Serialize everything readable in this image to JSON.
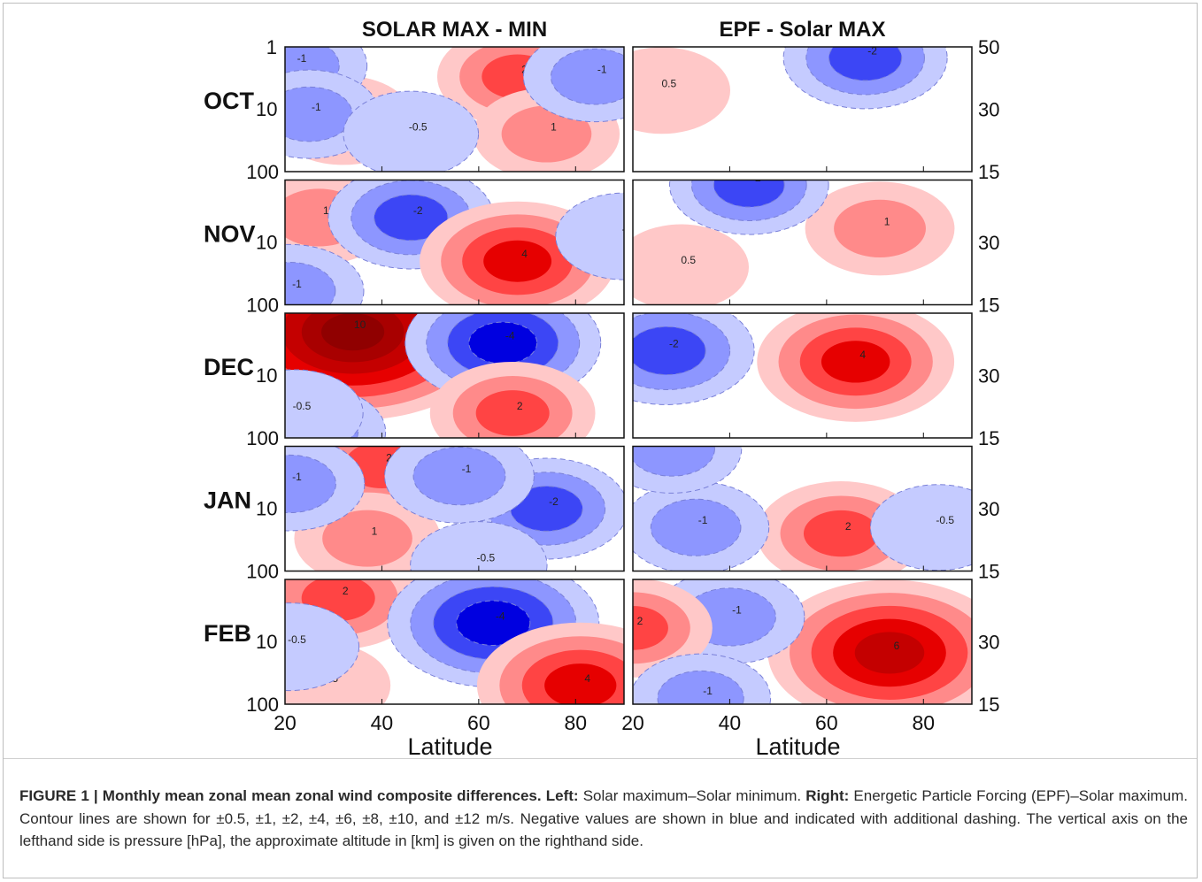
{
  "figure": {
    "panel_titles": [
      "SOLAR MAX - MIN",
      "EPF - Solar MAX"
    ],
    "months": [
      "OCT",
      "NOV",
      "DEC",
      "JAN",
      "FEB"
    ],
    "month_subscript": "10",
    "left_yticks": [
      "1",
      "100"
    ],
    "right_yticks": [
      "50",
      "30",
      "15"
    ],
    "xticks": [
      "20",
      "40",
      "60",
      "80"
    ],
    "xlabel": "Latitude",
    "colors": {
      "positive": "#e60000",
      "negative": "#0000e6"
    }
  },
  "caption": {
    "figure_label": "FIGURE 1 |",
    "title": "Monthly mean zonal mean zonal wind composite differences.",
    "left_label": "Left:",
    "left_text": "Solar maximum–Solar minimum.",
    "right_label": "Right:",
    "right_text": "Energetic Particle Forcing (EPF)–Solar maximum. Contour lines are shown for ±0.5, ±1, ±2, ±4, ±6, ±8, ±10, and ±12 m/s. Negative values are shown in blue and indicated with additional dashing. The vertical axis on the lefthand side is pressure [hPa], the approximate altitude in [km] is given on the righthand side."
  },
  "chart_data": [
    {
      "type": "heatmap",
      "title": "SOLAR MAX - MIN",
      "x_label": "Latitude",
      "x_range": [
        20,
        90
      ],
      "x_ticks": [
        20,
        40,
        60,
        80
      ],
      "y_label_left": "",
      "y_range": [
        100,
        1
      ],
      "y_scale": "log",
      "y_ticks_left": [
        1,
        10,
        100
      ],
      "contour_levels": [
        -12,
        -10,
        -8,
        -6,
        -4,
        -2,
        -1,
        -0.5,
        0.5,
        1,
        2,
        4,
        6,
        8,
        10,
        12
      ],
      "units": "m/s",
      "panels": [
        {
          "month": "OCT",
          "features": [
            {
              "lat": 68,
              "p": 3,
              "value": 2.3
            },
            {
              "lat": 74,
              "p": 25,
              "value": 1.4
            },
            {
              "lat": 32,
              "p": 15,
              "value": 1.1
            },
            {
              "lat": 22,
              "p": 2,
              "value": -1.3
            },
            {
              "lat": 25,
              "p": 12,
              "value": -1.0
            },
            {
              "lat": 46,
              "p": 25,
              "value": -0.7
            },
            {
              "lat": 84,
              "p": 3,
              "value": -1.2
            }
          ]
        },
        {
          "month": "NOV",
          "features": [
            {
              "lat": 22,
              "p": 2,
              "value": 3.0
            },
            {
              "lat": 27,
              "p": 4,
              "value": 1.6
            },
            {
              "lat": 46,
              "p": 4,
              "value": -2.6
            },
            {
              "lat": 68,
              "p": 20,
              "value": 4.5
            },
            {
              "lat": 21,
              "p": 60,
              "value": -1.5
            },
            {
              "lat": 90,
              "p": 8,
              "value": -0.8
            }
          ]
        },
        {
          "month": "DEC",
          "features": [
            {
              "lat": 34,
              "p": 2,
              "value": 11.0
            },
            {
              "lat": 65,
              "p": 3,
              "value": -4.5
            },
            {
              "lat": 67,
              "p": 40,
              "value": 2.6
            },
            {
              "lat": 26,
              "p": 80,
              "value": -1.2
            },
            {
              "lat": 22,
              "p": 40,
              "value": -0.8
            }
          ]
        },
        {
          "month": "JAN",
          "features": [
            {
              "lat": 40,
              "p": 2,
              "value": 2.8
            },
            {
              "lat": 37,
              "p": 30,
              "value": 1.4
            },
            {
              "lat": 21,
              "p": 4,
              "value": -1.6
            },
            {
              "lat": 74,
              "p": 10,
              "value": -2.4
            },
            {
              "lat": 56,
              "p": 3,
              "value": -1.6
            },
            {
              "lat": 60,
              "p": 80,
              "value": -0.8
            }
          ]
        },
        {
          "month": "FEB",
          "features": [
            {
              "lat": 31,
              "p": 2,
              "value": 2.6
            },
            {
              "lat": 63,
              "p": 5,
              "value": -5.5
            },
            {
              "lat": 81,
              "p": 50,
              "value": 5.2
            },
            {
              "lat": 28,
              "p": 50,
              "value": 0.6
            },
            {
              "lat": 21,
              "p": 12,
              "value": -0.9
            }
          ]
        }
      ]
    },
    {
      "type": "heatmap",
      "title": "EPF - Solar MAX",
      "x_label": "Latitude",
      "x_range": [
        20,
        90
      ],
      "x_ticks": [
        20,
        40,
        60,
        80
      ],
      "y_label_right": "",
      "y_ticks_right_km": [
        50,
        30,
        15
      ],
      "contour_levels": [
        -12,
        -10,
        -8,
        -6,
        -4,
        -2,
        -1,
        -0.5,
        0.5,
        1,
        2,
        4,
        6,
        8,
        10,
        12
      ],
      "units": "m/s",
      "panels": [
        {
          "month": "OCT",
          "features": [
            {
              "lat": 68,
              "p": 1.5,
              "value": -2.5
            },
            {
              "lat": 26,
              "p": 5,
              "value": 0.8
            }
          ]
        },
        {
          "month": "NOV",
          "features": [
            {
              "lat": 71,
              "p": 6,
              "value": 1.6
            },
            {
              "lat": 44,
              "p": 1.2,
              "value": -2.2
            },
            {
              "lat": 30,
              "p": 25,
              "value": 0.7
            }
          ]
        },
        {
          "month": "DEC",
          "features": [
            {
              "lat": 66,
              "p": 6,
              "value": 4.6
            },
            {
              "lat": 27,
              "p": 4,
              "value": -3.2
            }
          ]
        },
        {
          "month": "JAN",
          "features": [
            {
              "lat": 63,
              "p": 25,
              "value": 2.8
            },
            {
              "lat": 33,
              "p": 20,
              "value": -1.4
            },
            {
              "lat": 83,
              "p": 20,
              "value": -0.7
            },
            {
              "lat": 28,
              "p": 1.1,
              "value": -1.0
            }
          ]
        },
        {
          "month": "FEB",
          "features": [
            {
              "lat": 73,
              "p": 15,
              "value": 7.5
            },
            {
              "lat": 40,
              "p": 4,
              "value": -1.6
            },
            {
              "lat": 20,
              "p": 6,
              "value": 2.2
            },
            {
              "lat": 34,
              "p": 80,
              "value": -1.0
            }
          ]
        }
      ]
    }
  ]
}
